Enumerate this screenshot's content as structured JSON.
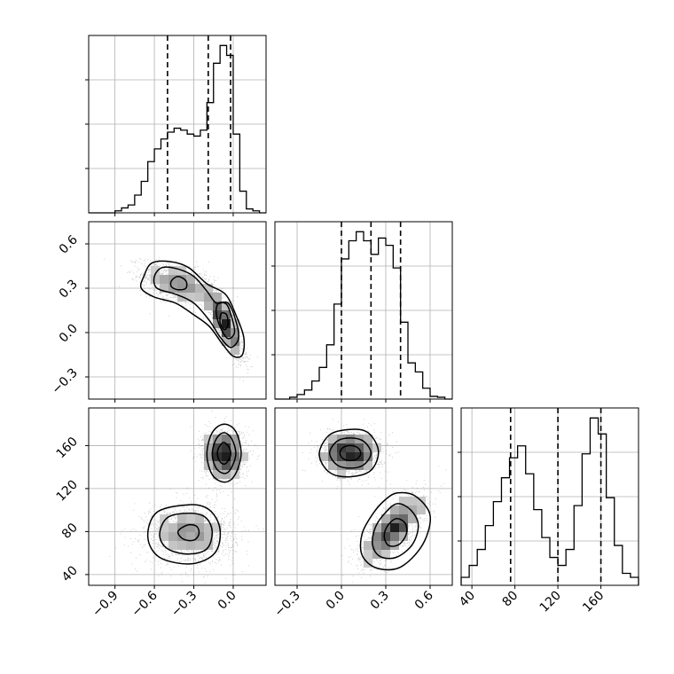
{
  "chart_data": {
    "type": "corner",
    "grid": true,
    "parameters": [
      {
        "ticks": [
          -0.9,
          -0.6,
          -0.3,
          0.0
        ],
        "tick_labels": [
          "−0.9",
          "−0.6",
          "−0.3",
          "0.0"
        ],
        "range": [
          -1.1,
          0.25
        ]
      },
      {
        "ticks": [
          -0.3,
          0.0,
          0.3,
          0.6
        ],
        "tick_labels": [
          "−0.3",
          "0.0",
          "0.3",
          "0.6"
        ],
        "range": [
          -0.45,
          0.75
        ]
      },
      {
        "ticks": [
          40,
          80,
          120,
          160
        ],
        "tick_labels": [
          "40",
          "80",
          "120",
          "160"
        ],
        "range": [
          30,
          195
        ]
      }
    ],
    "histograms": [
      {
        "bin_edges": [
          -1.1,
          -1.05,
          -1.0,
          -0.95,
          -0.9,
          -0.85,
          -0.8,
          -0.75,
          -0.7,
          -0.65,
          -0.6,
          -0.55,
          -0.5,
          -0.45,
          -0.4,
          -0.35,
          -0.3,
          -0.25,
          -0.2,
          -0.15,
          -0.1,
          -0.05,
          0.0,
          0.05,
          0.1,
          0.15,
          0.2,
          0.25
        ],
        "counts": [
          0,
          0,
          0,
          0,
          2,
          5,
          8,
          18,
          32,
          52,
          65,
          75,
          82,
          86,
          84,
          80,
          78,
          84,
          112,
          152,
          170,
          160,
          80,
          22,
          4,
          2,
          0
        ],
        "quantile_lines": [
          -0.5,
          -0.19,
          -0.02
        ]
      },
      {
        "bin_edges": [
          -0.45,
          -0.4,
          -0.35,
          -0.3,
          -0.25,
          -0.2,
          -0.15,
          -0.1,
          -0.05,
          0.0,
          0.05,
          0.1,
          0.15,
          0.2,
          0.25,
          0.3,
          0.35,
          0.4,
          0.45,
          0.5,
          0.55,
          0.6,
          0.65,
          0.7,
          0.75
        ],
        "counts": [
          0,
          0,
          2,
          5,
          10,
          20,
          35,
          60,
          105,
          155,
          175,
          185,
          175,
          160,
          178,
          170,
          145,
          85,
          40,
          30,
          12,
          3,
          2,
          0
        ],
        "quantile_lines": [
          0.0,
          0.2,
          0.4
        ]
      },
      {
        "bin_edges": [
          30,
          37.5,
          45,
          52.5,
          60,
          67.5,
          75,
          82.5,
          90,
          97.5,
          105,
          112.5,
          120,
          127.5,
          135,
          142.5,
          150,
          157.5,
          165,
          172.5,
          180,
          187.5,
          195
        ],
        "counts": [
          2,
          5,
          9,
          15,
          21,
          27,
          32,
          35,
          28,
          19,
          12,
          7,
          5,
          9,
          20,
          33,
          42,
          38,
          22,
          10,
          3,
          2
        ],
        "quantile_lines": [
          76,
          120,
          160
        ]
      }
    ],
    "scatter_2d": [
      {
        "params": [
          0,
          1
        ],
        "clusters": [
          {
            "mean": [
              -0.42,
              0.33
            ],
            "sd": [
              0.14,
              0.07
            ],
            "corr": -0.5,
            "weight": 0.45
          },
          {
            "mean": [
              -0.07,
              0.07
            ],
            "sd": [
              0.07,
              0.12
            ],
            "corr": -0.85,
            "weight": 0.55
          }
        ],
        "contours": [
          [
            [
              -0.68,
              0.38
            ],
            [
              -0.62,
              0.47
            ],
            [
              -0.48,
              0.48
            ],
            [
              -0.34,
              0.44
            ],
            [
              -0.2,
              0.33
            ],
            [
              -0.06,
              0.26
            ],
            [
              0.02,
              0.12
            ],
            [
              0.08,
              -0.03
            ],
            [
              0.07,
              -0.15
            ],
            [
              0.0,
              -0.16
            ],
            [
              -0.08,
              -0.08
            ],
            [
              -0.18,
              0.04
            ],
            [
              -0.3,
              0.12
            ],
            [
              -0.44,
              0.2
            ],
            [
              -0.6,
              0.24
            ],
            [
              -0.7,
              0.3
            ]
          ],
          [
            [
              -0.6,
              0.38
            ],
            [
              -0.54,
              0.44
            ],
            [
              -0.42,
              0.43
            ],
            [
              -0.3,
              0.38
            ],
            [
              -0.2,
              0.28
            ],
            [
              -0.13,
              0.2
            ],
            [
              -0.04,
              0.2
            ],
            [
              0.02,
              0.08
            ],
            [
              0.04,
              -0.04
            ],
            [
              -0.02,
              -0.1
            ],
            [
              -0.1,
              -0.03
            ],
            [
              -0.18,
              0.08
            ],
            [
              -0.3,
              0.2
            ],
            [
              -0.44,
              0.26
            ],
            [
              -0.58,
              0.3
            ]
          ],
          [
            [
              -0.47,
              0.35
            ],
            [
              -0.42,
              0.38
            ],
            [
              -0.36,
              0.35
            ],
            [
              -0.36,
              0.3
            ],
            [
              -0.42,
              0.29
            ],
            [
              -0.47,
              0.31
            ]
          ],
          [
            [
              -0.11,
              0.2
            ],
            [
              -0.05,
              0.19
            ],
            [
              -0.01,
              0.1
            ],
            [
              0.01,
              0.0
            ],
            [
              -0.04,
              -0.04
            ],
            [
              -0.1,
              0.04
            ],
            [
              -0.13,
              0.14
            ]
          ],
          [
            [
              -0.09,
              0.13
            ],
            [
              -0.05,
              0.12
            ],
            [
              -0.04,
              0.05
            ],
            [
              -0.07,
              0.02
            ],
            [
              -0.1,
              0.07
            ]
          ]
        ]
      },
      {
        "params": [
          0,
          2
        ],
        "clusters": [
          {
            "mean": [
              -0.33,
              78
            ],
            "sd": [
              0.17,
              14
            ],
            "corr": 0.0,
            "weight": 0.5
          },
          {
            "mean": [
              -0.07,
              152
            ],
            "sd": [
              0.08,
              12
            ],
            "corr": 0.0,
            "weight": 0.5
          }
        ],
        "contours": [
          [
            [
              -0.33,
              105
            ],
            [
              -0.18,
              100
            ],
            [
              -0.1,
              82
            ],
            [
              -0.14,
              60
            ],
            [
              -0.32,
              50
            ],
            [
              -0.56,
              56
            ],
            [
              -0.65,
              75
            ],
            [
              -0.58,
              98
            ]
          ],
          [
            [
              -0.33,
              97
            ],
            [
              -0.21,
              93
            ],
            [
              -0.16,
              80
            ],
            [
              -0.2,
              64
            ],
            [
              -0.34,
              59
            ],
            [
              -0.5,
              64
            ],
            [
              -0.56,
              77
            ],
            [
              -0.5,
              93
            ]
          ],
          [
            [
              -0.35,
              86
            ],
            [
              -0.28,
              85
            ],
            [
              -0.26,
              78
            ],
            [
              -0.3,
              72
            ],
            [
              -0.38,
              73
            ],
            [
              -0.42,
              80
            ]
          ],
          [
            [
              -0.07,
              180
            ],
            [
              0.02,
              173
            ],
            [
              0.06,
              152
            ],
            [
              0.01,
              132
            ],
            [
              -0.07,
              126
            ],
            [
              -0.16,
              133
            ],
            [
              -0.2,
              152
            ],
            [
              -0.16,
              172
            ]
          ],
          [
            [
              -0.07,
              172
            ],
            [
              -0.01,
              166
            ],
            [
              0.02,
              152
            ],
            [
              -0.02,
              138
            ],
            [
              -0.07,
              134
            ],
            [
              -0.13,
              139
            ],
            [
              -0.16,
              152
            ],
            [
              -0.13,
              166
            ]
          ],
          [
            [
              -0.07,
              163
            ],
            [
              -0.03,
              158
            ],
            [
              -0.02,
              151
            ],
            [
              -0.05,
              144
            ],
            [
              -0.08,
              143
            ],
            [
              -0.11,
              147
            ],
            [
              -0.12,
              154
            ],
            [
              -0.1,
              160
            ]
          ]
        ]
      },
      {
        "params": [
          1,
          2
        ],
        "clusters": [
          {
            "mean": [
              0.06,
              153
            ],
            "sd": [
              0.1,
              10
            ],
            "corr": 0.0,
            "weight": 0.5
          },
          {
            "mean": [
              0.35,
              82
            ],
            "sd": [
              0.11,
              16
            ],
            "corr": 0.7,
            "weight": 0.5
          }
        ],
        "contours": [
          [
            [
              0.06,
              175
            ],
            [
              0.18,
              172
            ],
            [
              0.25,
              155
            ],
            [
              0.2,
              137
            ],
            [
              0.06,
              131
            ],
            [
              -0.08,
              135
            ],
            [
              -0.15,
              152
            ],
            [
              -0.08,
              170
            ]
          ],
          [
            [
              0.06,
              167
            ],
            [
              0.15,
              164
            ],
            [
              0.2,
              153
            ],
            [
              0.15,
              142
            ],
            [
              0.06,
              139
            ],
            [
              -0.03,
              142
            ],
            [
              -0.08,
              153
            ],
            [
              -0.03,
              164
            ]
          ],
          [
            [
              0.06,
              160
            ],
            [
              0.11,
              158
            ],
            [
              0.13,
              153
            ],
            [
              0.11,
              148
            ],
            [
              0.06,
              146
            ],
            [
              0.01,
              148
            ],
            [
              -0.01,
              153
            ],
            [
              0.01,
              158
            ]
          ],
          [
            [
              0.38,
              116
            ],
            [
              0.5,
              113
            ],
            [
              0.6,
              95
            ],
            [
              0.55,
              68
            ],
            [
              0.4,
              47
            ],
            [
              0.24,
              46
            ],
            [
              0.14,
              58
            ],
            [
              0.14,
              78
            ],
            [
              0.22,
              98
            ],
            [
              0.3,
              110
            ]
          ],
          [
            [
              0.38,
              106
            ],
            [
              0.47,
              100
            ],
            [
              0.52,
              86
            ],
            [
              0.48,
              68
            ],
            [
              0.37,
              56
            ],
            [
              0.26,
              57
            ],
            [
              0.21,
              68
            ],
            [
              0.23,
              84
            ],
            [
              0.3,
              98
            ]
          ],
          [
            [
              0.37,
              92
            ],
            [
              0.43,
              88
            ],
            [
              0.44,
              78
            ],
            [
              0.39,
              68
            ],
            [
              0.32,
              67
            ],
            [
              0.29,
              75
            ],
            [
              0.31,
              85
            ]
          ]
        ]
      }
    ]
  }
}
